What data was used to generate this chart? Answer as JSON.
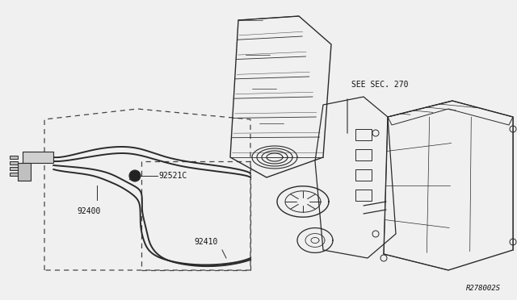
{
  "bg_color": "#f0f0f0",
  "line_color": "#2a2a2a",
  "dashed_color": "#444444",
  "label_color": "#111111",
  "fig_width": 6.4,
  "fig_height": 3.72,
  "dpi": 100,
  "labels": {
    "see_sec": "SEE SEC. 270",
    "part_92521c": "92521C",
    "part_92400": "92400",
    "part_92410": "92410",
    "ref_code": "R278002S"
  }
}
